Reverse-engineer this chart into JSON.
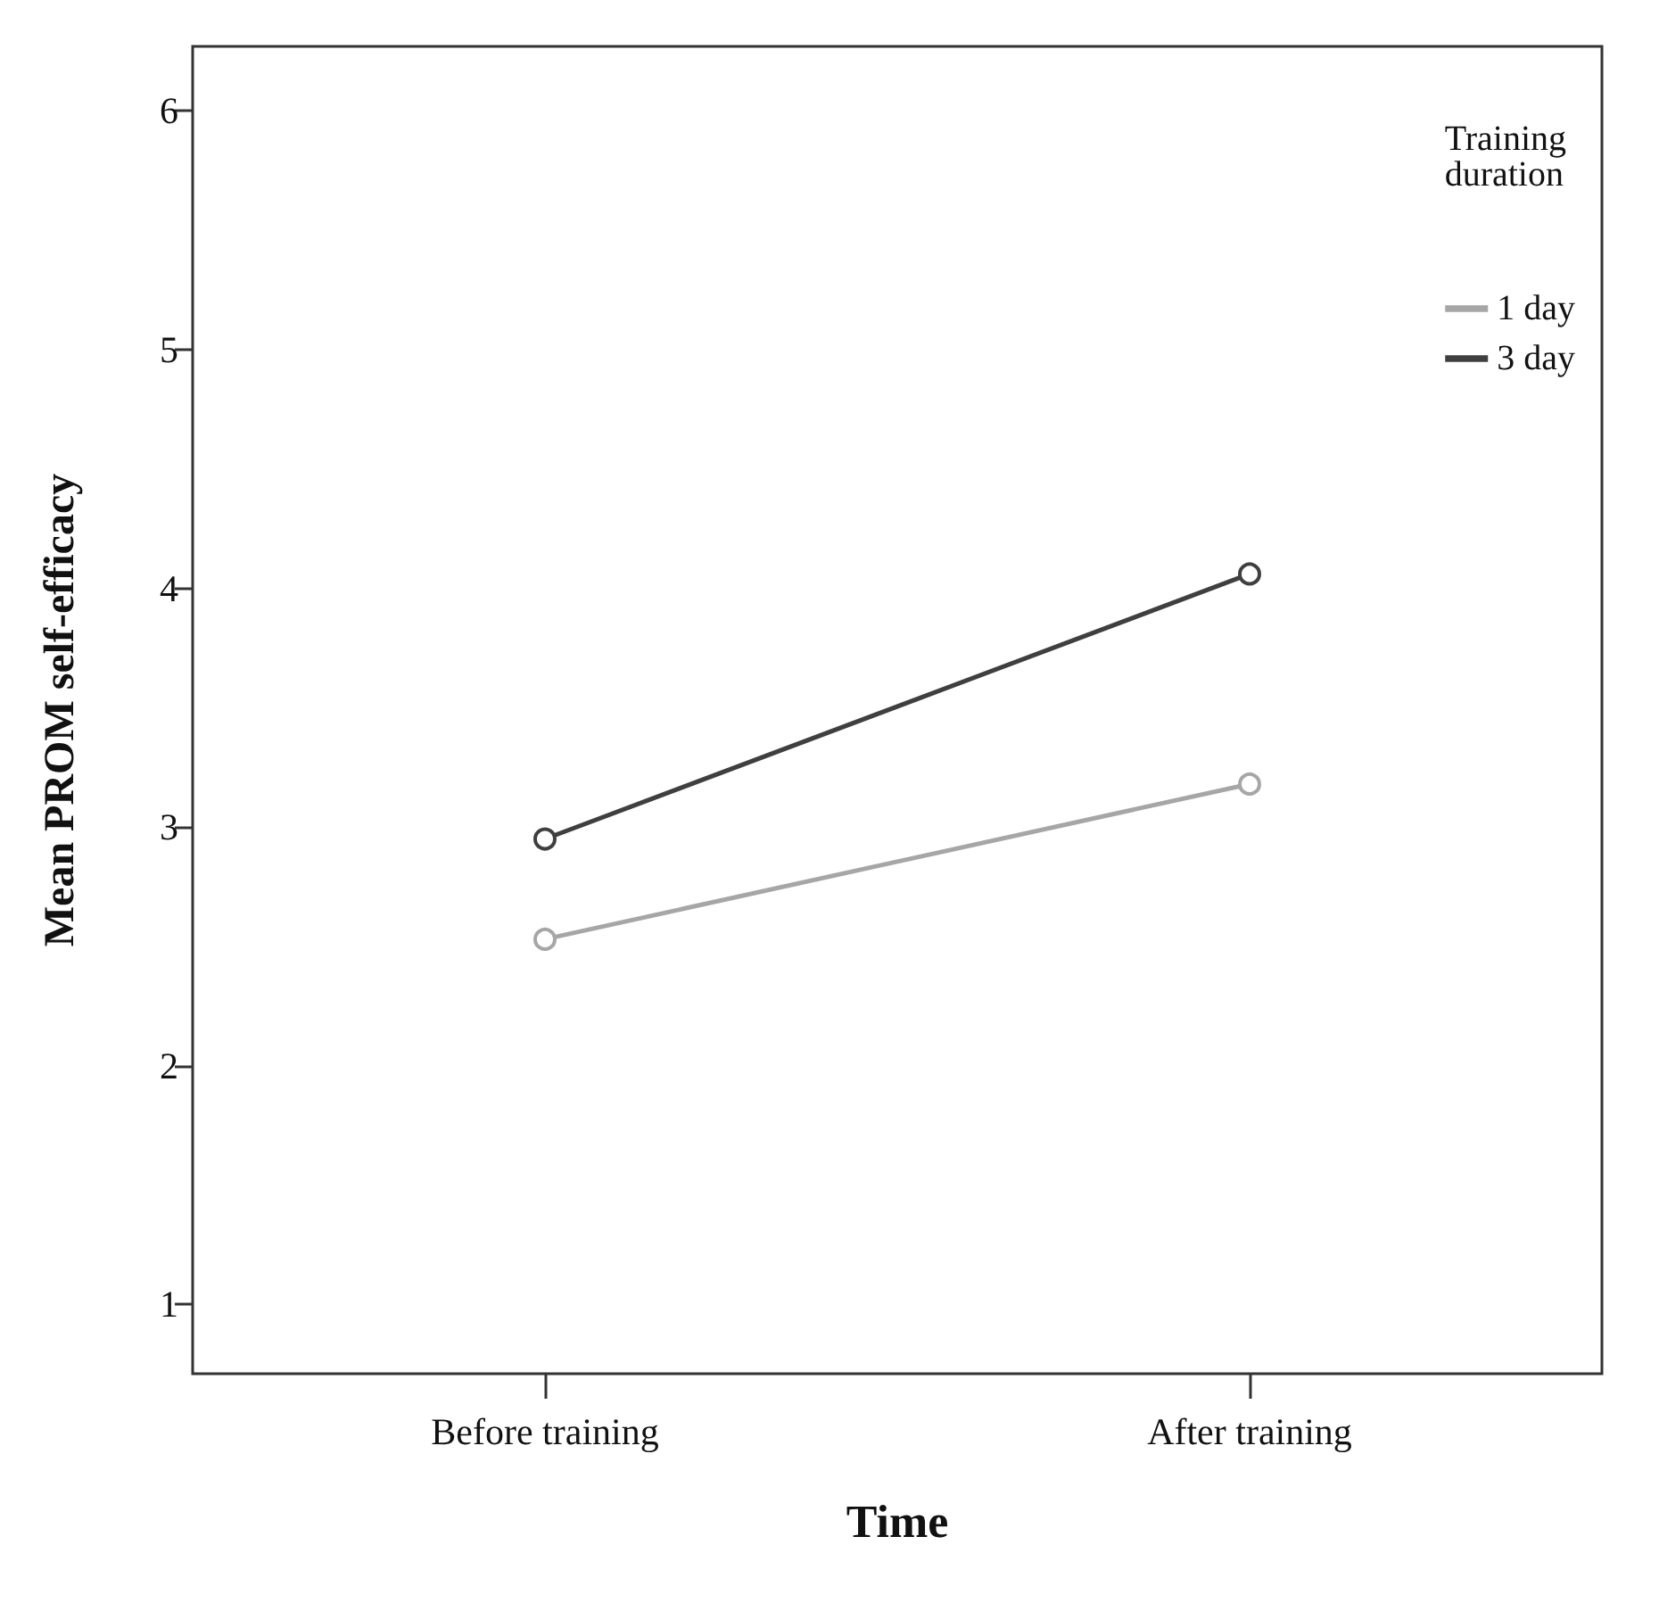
{
  "chart_data": {
    "type": "line",
    "xlabel": "Time",
    "ylabel": "Mean PROM self-efficacy",
    "legend_title": "Training\nduration",
    "categories": [
      "Before training",
      "After training"
    ],
    "series": [
      {
        "name": "1 day",
        "color": "#a6a6a6",
        "values": [
          2.53,
          3.18
        ]
      },
      {
        "name": "3 day",
        "color": "#3f3f3f",
        "values": [
          2.95,
          4.06
        ]
      }
    ],
    "ylim": [
      0.71,
      6.27
    ],
    "yticks": [
      1,
      2,
      3,
      4,
      5,
      6
    ],
    "grid": false,
    "legend": "top right",
    "marker": "circle",
    "line_style": "solid"
  }
}
